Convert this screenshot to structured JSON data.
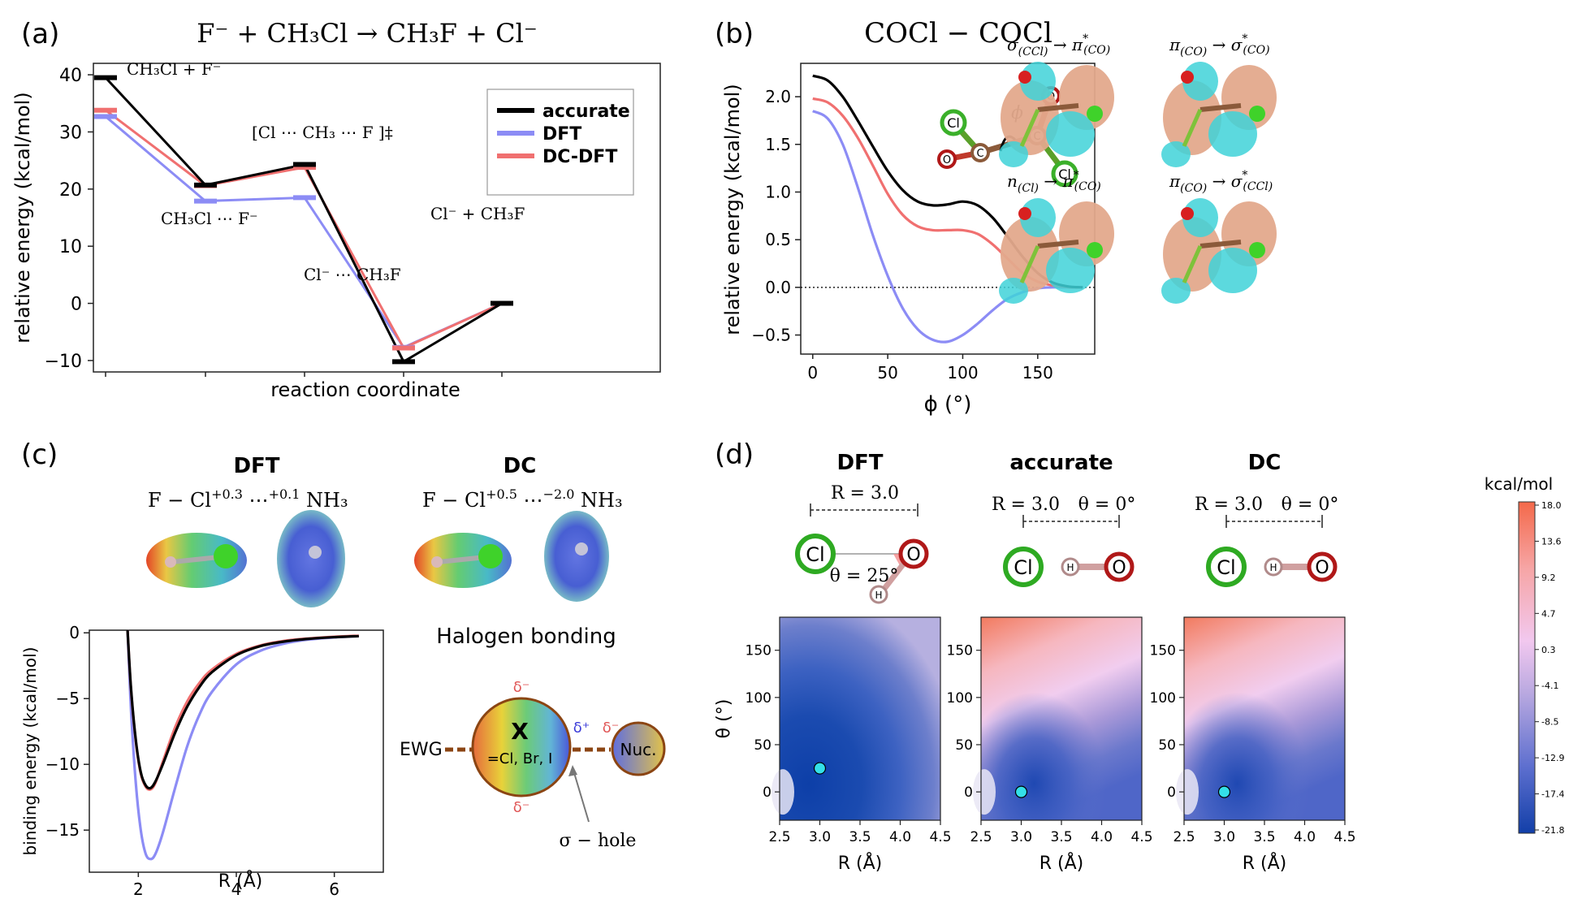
{
  "panels": {
    "a": {
      "label": "(a)",
      "title": "F⁻ + CH₃Cl → CH₃F + Cl⁻",
      "chart_data": {
        "type": "line",
        "xlabel": "reaction coordinate",
        "ylabel": "relative energy (kcal/mol)",
        "ylim": [
          -12,
          42
        ],
        "yticks": [
          -10,
          0,
          10,
          20,
          30,
          40
        ],
        "legend_position": "top-right",
        "states": [
          {
            "name": "CH₃Cl + F⁻"
          },
          {
            "name": "CH₃Cl ⋯ F⁻"
          },
          {
            "name": "[Cl ⋯ CH₃ ⋯ F ]‡"
          },
          {
            "name": "Cl⁻ ⋯ CH₃F"
          },
          {
            "name": "Cl⁻ + CH₃F"
          }
        ],
        "series": [
          {
            "name": "accurate",
            "color": "#000000",
            "values": [
              39.5,
              20.7,
              24.3,
              -10.2,
              0
            ]
          },
          {
            "name": "DFT",
            "color": "#8c8cf5",
            "values": [
              32.7,
              17.9,
              18.5,
              -7.7,
              0
            ]
          },
          {
            "name": "DC-DFT",
            "color": "#f07070",
            "values": [
              33.8,
              20.6,
              23.8,
              -7.8,
              0
            ]
          }
        ]
      }
    },
    "b": {
      "label": "(b)",
      "title": "COCl − COCl",
      "chart_data": {
        "type": "line",
        "xlabel": "ϕ (°)",
        "ylabel": "relative energy (kcal/mol)",
        "xlim": [
          -8,
          188
        ],
        "ylim": [
          -0.7,
          2.35
        ],
        "xticks": [
          0,
          50,
          100,
          150
        ],
        "yticks": [
          -0.5,
          0.0,
          0.5,
          1.0,
          1.5,
          2.0
        ],
        "series": [
          {
            "name": "accurate",
            "color": "#000000",
            "x": [
              0,
              10,
              20,
              30,
              40,
              50,
              60,
              70,
              80,
              90,
              100,
              110,
              120,
              130,
              140,
              150,
              160,
              170,
              180
            ],
            "y": [
              2.22,
              2.17,
              2.0,
              1.75,
              1.48,
              1.22,
              1.02,
              0.9,
              0.86,
              0.87,
              0.9,
              0.86,
              0.73,
              0.53,
              0.32,
              0.15,
              0.05,
              0.01,
              0.0
            ]
          },
          {
            "name": "DFT",
            "color": "#8c8cf5",
            "x": [
              0,
              10,
              20,
              30,
              40,
              50,
              60,
              70,
              80,
              90,
              100,
              110,
              120,
              130,
              140,
              150,
              160,
              170,
              180
            ],
            "y": [
              1.85,
              1.77,
              1.5,
              1.05,
              0.55,
              0.12,
              -0.22,
              -0.44,
              -0.55,
              -0.57,
              -0.5,
              -0.38,
              -0.24,
              -0.12,
              -0.05,
              -0.01,
              0.0,
              0.0,
              0.0
            ]
          },
          {
            "name": "DC-DFT",
            "color": "#f07070",
            "x": [
              0,
              10,
              20,
              30,
              40,
              50,
              60,
              70,
              80,
              90,
              100,
              110,
              120,
              130,
              140,
              150,
              160,
              170,
              180
            ],
            "y": [
              1.98,
              1.94,
              1.8,
              1.57,
              1.28,
              0.98,
              0.76,
              0.64,
              0.6,
              0.6,
              0.6,
              0.56,
              0.45,
              0.3,
              0.15,
              0.06,
              0.02,
              0.0,
              0.0
            ]
          }
        ],
        "reference_line": 0.0
      },
      "molecule_labels": {
        "cl": "Cl",
        "c": "C",
        "o": "O",
        "phi": "ϕ"
      },
      "orbitals": [
        {
          "from": "σ",
          "from_sub": "(CCl)",
          "to": "π",
          "to_sub": "(CO)"
        },
        {
          "from": "π",
          "from_sub": "(CO)",
          "to": "σ",
          "to_sub": "(CO)"
        },
        {
          "from": "n",
          "from_sub": "(Cl)",
          "to": "π",
          "to_sub": "(CO)"
        },
        {
          "from": "π",
          "from_sub": "(CO)",
          "to": "σ",
          "to_sub": "(CCl)"
        }
      ]
    },
    "c": {
      "label": "(c)",
      "dft_heading": "DFT",
      "dc_heading": "DC",
      "dft_formula": {
        "base": "F − Cl",
        "sup1": "+0.3",
        "mid": " ⋯",
        "sup2": "+0.1",
        "end": " NH₃"
      },
      "dc_formula": {
        "base": "F − Cl",
        "sup1": "+0.5",
        "mid": " ⋯",
        "sup2": "−2.0",
        "end": " NH₃"
      },
      "scheme_title": "Halogen bonding",
      "scheme": {
        "ewg": "EWG",
        "x": "X",
        "x_sub": "=Cl, Br, I",
        "nuc": "Nuc.",
        "delta_minus": "δ⁻",
        "delta_plus": "δ⁺",
        "hole": "σ − hole"
      },
      "chart_data": {
        "type": "line",
        "xlabel": "R (Å)",
        "ylabel": "binding energy (kcal/mol)",
        "xlim": [
          1.0,
          7.0
        ],
        "ylim": [
          -18.2,
          0.2
        ],
        "xticks": [
          2,
          4,
          6
        ],
        "yticks": [
          0,
          -5,
          -10,
          -15
        ],
        "series": [
          {
            "name": "accurate",
            "color": "#000000",
            "x": [
              1.78,
              1.85,
              1.95,
              2.05,
              2.15,
              2.25,
              2.35,
              2.5,
              2.75,
              3.0,
              3.25,
              3.5,
              4.0,
              4.5,
              5.0,
              5.5,
              6.0,
              6.5
            ],
            "y": [
              0.2,
              -4.2,
              -8.2,
              -10.6,
              -11.6,
              -11.8,
              -11.3,
              -10.0,
              -7.6,
              -5.6,
              -4.1,
              -3.0,
              -1.7,
              -1.0,
              -0.65,
              -0.45,
              -0.33,
              -0.25
            ]
          },
          {
            "name": "DFT",
            "color": "#8c8cf5",
            "x": [
              1.78,
              1.85,
              1.95,
              2.05,
              2.15,
              2.25,
              2.35,
              2.5,
              2.75,
              3.0,
              3.25,
              3.5,
              4.0,
              4.5,
              5.0,
              5.5,
              6.0,
              6.5
            ],
            "y": [
              0.2,
              -5.8,
              -11.5,
              -15.0,
              -16.8,
              -17.2,
              -16.8,
              -15.2,
              -11.8,
              -8.6,
              -6.2,
              -4.5,
              -2.4,
              -1.35,
              -0.8,
              -0.5,
              -0.35,
              -0.25
            ]
          },
          {
            "name": "DC-DFT",
            "color": "#f07070",
            "x": [
              1.78,
              1.85,
              1.95,
              2.05,
              2.15,
              2.25,
              2.35,
              2.5,
              2.75,
              3.0,
              3.25,
              3.5,
              4.0,
              4.5,
              5.0,
              5.5,
              6.0,
              6.5
            ],
            "y": [
              0.2,
              -4.3,
              -8.3,
              -10.7,
              -11.7,
              -11.9,
              -11.4,
              -9.8,
              -7.2,
              -5.2,
              -3.8,
              -2.8,
              -1.6,
              -0.95,
              -0.6,
              -0.42,
              -0.3,
              -0.22
            ]
          }
        ]
      }
    },
    "d": {
      "label": "(d)",
      "colorbar": {
        "title": "kcal/mol",
        "ticks": [
          "18.0",
          "13.6",
          "9.2",
          "4.7",
          "0.3",
          "-4.1",
          "-8.5",
          "-12.9",
          "-17.4",
          "-21.8"
        ]
      },
      "maps": [
        {
          "heading": "DFT",
          "r_label": "R = 3.0",
          "theta_label": "θ = 25°",
          "minimum": [
            3.0,
            25
          ]
        },
        {
          "heading": "accurate",
          "r_label": "R = 3.0",
          "theta_label": "θ = 0°",
          "minimum": [
            3.0,
            0
          ]
        },
        {
          "heading": "DC",
          "r_label": "R = 3.0",
          "theta_label": "θ = 0°",
          "minimum": [
            3.0,
            0
          ]
        }
      ],
      "atoms": {
        "cl": "Cl",
        "o": "O",
        "h": "H"
      },
      "chart_data": {
        "type": "heatmap",
        "xlabel": "R (Å)",
        "ylabel": "θ (°)",
        "xlim": [
          2.5,
          4.5
        ],
        "ylim": [
          -30,
          185
        ],
        "xticks": [
          "2.5",
          "3.0",
          "3.5",
          "4.0",
          "4.5"
        ],
        "yticks": [
          "0",
          "50",
          "100",
          "150"
        ],
        "zlim": [
          -21.8,
          18.0
        ]
      }
    }
  }
}
